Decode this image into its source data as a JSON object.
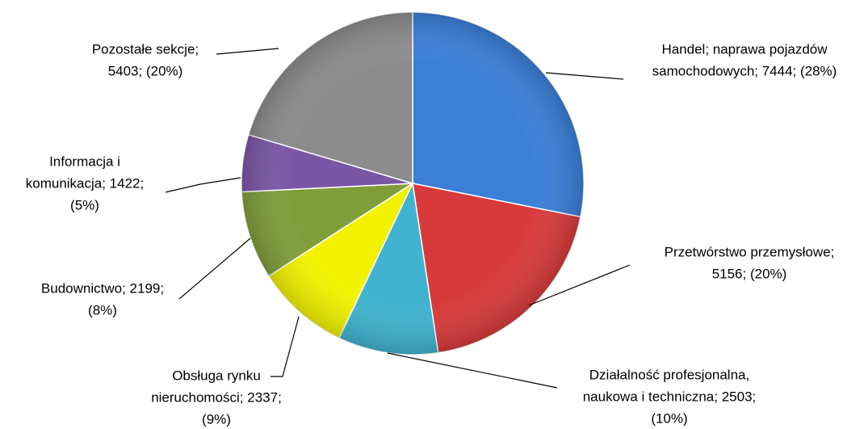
{
  "chart_data": {
    "type": "pie",
    "values": [
      7444,
      5156,
      2503,
      2337,
      2199,
      1422,
      5403
    ],
    "value_labels": [
      [
        "Handel; naprawa pojazdów",
        "samochodowych; 7444; (28%)"
      ],
      [
        "Przetwórstwo przemysłowe;",
        "5156; (20%)"
      ],
      [
        "Działalność profesjonalna,",
        "naukowa i techniczna; 2503;",
        "(10%)"
      ],
      [
        "Obsługa rynku",
        "nieruchomości; 2337;",
        "(9%)"
      ],
      [
        "Budownictwo; 2199;",
        "(8%)"
      ],
      [
        "Informacja i",
        "komunikacja; 1422;",
        "(5%)"
      ],
      [
        "Pozostałe sekcje;",
        "5403; (20%)"
      ]
    ],
    "colors": [
      "#3b7fd9",
      "#d83a3a",
      "#3fb3cf",
      "#f2f200",
      "#7f9e3a",
      "#7a56a6",
      "#8c8c8c"
    ]
  }
}
